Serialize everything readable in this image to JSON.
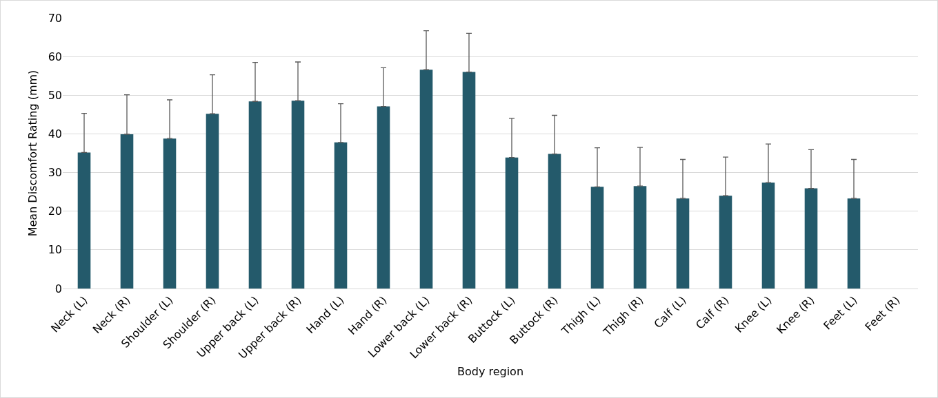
{
  "chart_data": {
    "type": "bar",
    "xlabel": "Body region",
    "ylabel": "Mean Discomfort Rating (mm)",
    "categories": [
      "Neck (L)",
      "Neck (R)",
      "Shoulder (L)",
      "Shoulder (R)",
      "Upper back (L)",
      "Upper back (R)",
      "Hand (L)",
      "Hand (R)",
      "Lower back (L)",
      "Lower back (R)",
      "Buttock (L)",
      "Buttock (R)",
      "Thigh (L)",
      "Thigh (R)",
      "Calf (L)",
      "Calf (R)",
      "Knee (L)",
      "Knee (R)",
      "Feet (L)",
      "Feet (R)"
    ],
    "values": [
      35.2,
      39.9,
      38.8,
      45.2,
      48.4,
      48.6,
      37.8,
      47.1,
      56.6,
      56.0,
      33.9,
      34.8,
      26.3,
      26.5,
      23.3,
      24.0,
      27.4,
      25.9,
      23.3,
      null
    ],
    "errors": [
      [
        35.2,
        45.3
      ],
      [
        39.9,
        50.1
      ],
      [
        38.8,
        48.8
      ],
      [
        45.2,
        55.3
      ],
      [
        48.4,
        58.5
      ],
      [
        48.6,
        58.6
      ],
      [
        37.8,
        47.8
      ],
      [
        47.1,
        57.1
      ],
      [
        56.6,
        66.7
      ],
      [
        56.0,
        66.0
      ],
      [
        33.9,
        44.0
      ],
      [
        34.8,
        44.8
      ],
      [
        26.3,
        36.4
      ],
      [
        26.5,
        36.5
      ],
      [
        23.3,
        33.4
      ],
      [
        24.0,
        34.0
      ],
      [
        27.4,
        37.4
      ],
      [
        25.9,
        35.9
      ],
      [
        23.3,
        33.4
      ],
      null
    ],
    "color": "#245a6b",
    "ylim": [
      0,
      70
    ],
    "yticks": [
      0,
      10,
      20,
      30,
      40,
      50,
      60,
      70
    ],
    "grid": "y"
  }
}
